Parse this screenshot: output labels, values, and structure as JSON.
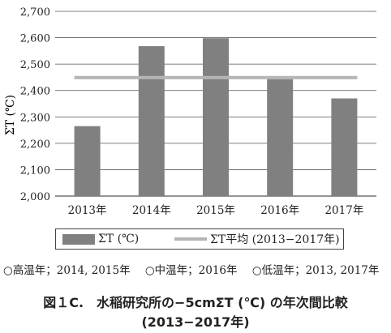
{
  "chart_data": {
    "type": "bar",
    "categories": [
      "2013年",
      "2014年",
      "2015年",
      "2016年",
      "2017年"
    ],
    "series": [
      {
        "name": "ΣT (℃)",
        "type": "bar",
        "values": [
          2265,
          2568,
          2598,
          2443,
          2370
        ]
      },
      {
        "name": "ΣT平均 (2013−2017年)",
        "type": "line",
        "values": [
          2449,
          2449,
          2449,
          2449,
          2449
        ]
      }
    ],
    "ylabel": "ΣT (℃)",
    "ylim": [
      2000,
      2700
    ],
    "yticks": [
      "2,000",
      "2,100",
      "2,200",
      "2,300",
      "2,400",
      "2,500",
      "2,600",
      "2,700"
    ],
    "grid": "horizontal",
    "legend_position": "bottom",
    "colors": {
      "bar": "#808080",
      "average_line": "#b5b5b5",
      "grid": "#555555"
    }
  },
  "legend": {
    "bar_label": "ΣT (℃)",
    "line_label": "ΣT平均 (2013−2017年)"
  },
  "notes": [
    "○高温年；2014, 2015年",
    "○中温年；2016年",
    "○低温年；2013, 2017年"
  ],
  "caption": {
    "line1": "図１C.　水稲研究所の−5cmΣT (℃) の年次間比較",
    "line2": "(2013−2017年)"
  }
}
